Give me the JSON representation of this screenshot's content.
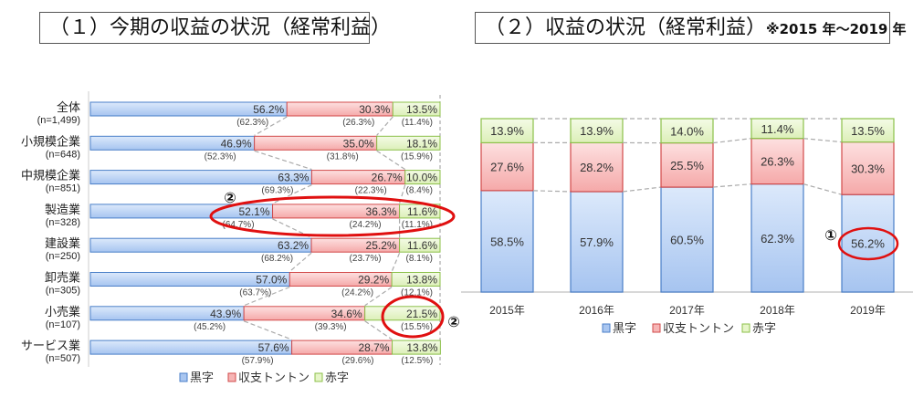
{
  "titles": {
    "left": "（１）今期の収益の状況（経常利益）",
    "right": "（２）収益の状況（経常利益）",
    "right_note": "※2015 年～2019 年"
  },
  "colors": {
    "profit": "#a9c6f0",
    "profit_edge": "#4a7fc8",
    "even": "#f6b5b5",
    "even_edge": "#d24a4a",
    "loss": "#e6f5c8",
    "loss_edge": "#8cc04a",
    "highlight": "#e01010"
  },
  "chart_data": [
    {
      "type": "bar",
      "orientation": "horizontal-stacked-100",
      "title": "（１）今期の収益の状況（経常利益）",
      "legend": [
        "黒字",
        "収支トントン",
        "赤字"
      ],
      "legend_position": "bottom",
      "categories": [
        "全体",
        "小規模企業",
        "中規模企業",
        "製造業",
        "建設業",
        "卸売業",
        "小売業",
        "サービス業"
      ],
      "sample_sizes": [
        "(n=1,499)",
        "(n=648)",
        "(n=851)",
        "(n=328)",
        "(n=250)",
        "(n=305)",
        "(n=107)",
        "(n=507)"
      ],
      "series": [
        {
          "name": "黒字",
          "values": [
            56.2,
            46.9,
            63.3,
            52.1,
            63.2,
            57.0,
            43.9,
            57.6
          ],
          "previous": [
            62.3,
            52.3,
            69.3,
            64.7,
            68.2,
            63.7,
            45.2,
            57.9
          ]
        },
        {
          "name": "収支トントン",
          "values": [
            30.3,
            35.0,
            26.7,
            36.3,
            25.2,
            29.2,
            34.6,
            28.7
          ],
          "previous": [
            26.3,
            31.8,
            22.3,
            24.2,
            23.7,
            24.2,
            39.3,
            29.6
          ]
        },
        {
          "name": "赤字",
          "values": [
            13.5,
            18.1,
            10.0,
            11.6,
            11.6,
            13.8,
            21.5,
            13.8
          ],
          "previous": [
            11.4,
            15.9,
            8.4,
            11.1,
            8.1,
            12.1,
            15.5,
            12.5
          ]
        }
      ],
      "annotations": [
        {
          "mark": "②",
          "target": "製造業 黒字/収支トントン"
        },
        {
          "mark": "②",
          "target": "小売業 赤字"
        }
      ],
      "xlim": [
        0,
        100
      ]
    },
    {
      "type": "bar",
      "orientation": "vertical-stacked-100",
      "title": "（２）収益の状況（経常利益）※2015 年～2019 年",
      "legend": [
        "黒字",
        "収支トントン",
        "赤字"
      ],
      "legend_position": "bottom",
      "categories": [
        "2015年",
        "2016年",
        "2017年",
        "2018年",
        "2019年"
      ],
      "series": [
        {
          "name": "黒字",
          "values": [
            58.5,
            57.9,
            60.5,
            62.3,
            56.2
          ]
        },
        {
          "name": "収支トントン",
          "values": [
            27.6,
            28.2,
            25.5,
            26.3,
            30.3
          ]
        },
        {
          "name": "赤字",
          "values": [
            13.9,
            13.9,
            14.0,
            11.4,
            13.5
          ]
        }
      ],
      "annotations": [
        {
          "mark": "①",
          "target": "2019年 黒字"
        }
      ],
      "ylim": [
        0,
        100
      ]
    }
  ]
}
